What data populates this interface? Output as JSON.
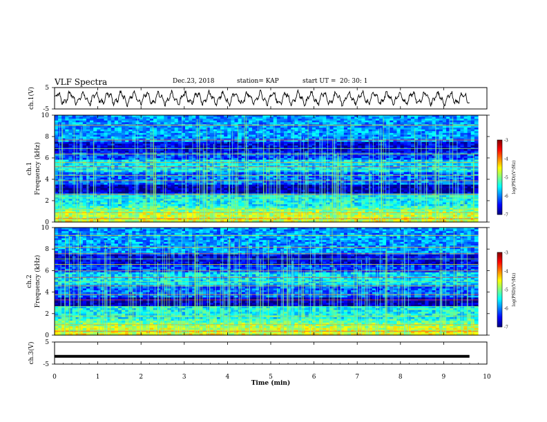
{
  "header": {
    "title": "VLF Spectra",
    "date": "Dec.23, 2018",
    "station": "station= KAP",
    "start_label": "start  UT =",
    "start_value": "20: 30: 1"
  },
  "chart_data": [
    {
      "type": "line",
      "panel": "ch1-waveform",
      "ylabel": "ch.1(V)",
      "ylim": [
        -5,
        5
      ],
      "yticks": [
        "5",
        "-5"
      ],
      "xlim": [
        0,
        10
      ],
      "color": "#000000",
      "pattern": "oscillating waveform, amplitude about ±3.5 V around 0"
    },
    {
      "type": "heatmap",
      "panel": "ch1-spectrogram",
      "ylabel_line1": "ch.1",
      "ylabel_line2": "Frequency (kHz)",
      "ylim": [
        0,
        10
      ],
      "yticks": [
        "0",
        "2",
        "4",
        "6",
        "8",
        "10"
      ],
      "xlim": [
        0,
        9.8
      ],
      "colorbar": {
        "label": "log(PSD)(V²/Hz)",
        "range": [
          -7,
          -3
        ],
        "ticks": [
          "-3",
          "-4",
          "-5",
          "-6",
          "-7"
        ]
      }
    },
    {
      "type": "heatmap",
      "panel": "ch2-spectrogram",
      "ylabel_line1": "ch.2",
      "ylabel_line2": "Frequency (kHz)",
      "ylim": [
        0,
        10
      ],
      "yticks": [
        "0",
        "2",
        "4",
        "6",
        "8",
        "10"
      ],
      "xlim": [
        0,
        9.8
      ],
      "colorbar": {
        "label": "log(PSD)(V²/Hz)",
        "range": [
          -7,
          -3
        ],
        "ticks": [
          "-3",
          "-4",
          "-5",
          "-6",
          "-7"
        ]
      }
    },
    {
      "type": "line",
      "panel": "ch3-waveform",
      "ylabel": "ch.3(V)",
      "ylim": [
        -5,
        5
      ],
      "yticks": [
        "5",
        "-5"
      ],
      "xlim": [
        0,
        10
      ],
      "x": [
        0,
        9.8
      ],
      "y": [
        -1.5,
        -1.5
      ],
      "color": "#000000"
    }
  ],
  "x_axis": {
    "label": "Time  (min)",
    "ticks": [
      "0",
      "1",
      "2",
      "3",
      "4",
      "5",
      "6",
      "7",
      "8",
      "9",
      "10"
    ]
  }
}
